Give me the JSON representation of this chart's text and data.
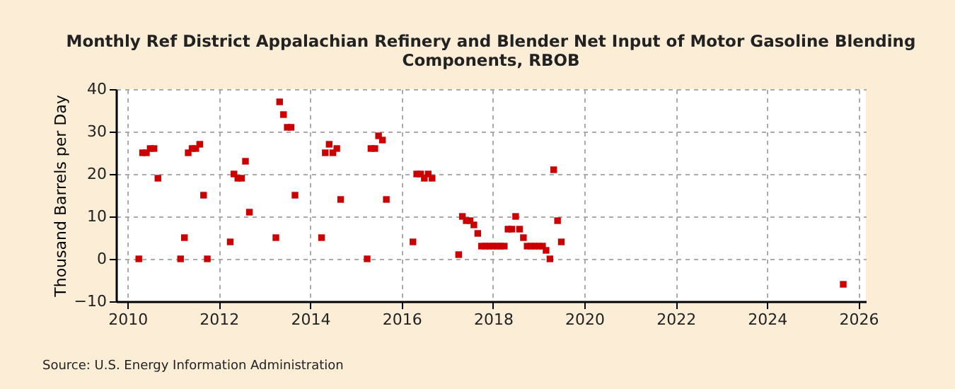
{
  "chart_data": {
    "type": "scatter",
    "title": "Monthly Ref District Appalachian Refinery and Blender Net Input of Motor Gasoline Blending Components, RBOB",
    "ylabel": "Thousand Barrels per Day",
    "annotations": [
      "Source: U.S. Energy Information Administration"
    ],
    "x": [
      "2010-04",
      "2010-05",
      "2010-06",
      "2010-07",
      "2010-08",
      "2010-09",
      "2011-03",
      "2011-04",
      "2011-05",
      "2011-06",
      "2011-07",
      "2011-08",
      "2011-09",
      "2011-10",
      "2012-04",
      "2012-05",
      "2012-06",
      "2012-07",
      "2012-08",
      "2012-09",
      "2013-04",
      "2013-05",
      "2013-06",
      "2013-07",
      "2013-08",
      "2013-09",
      "2014-04",
      "2014-05",
      "2014-06",
      "2014-07",
      "2014-08",
      "2014-09",
      "2015-04",
      "2015-05",
      "2015-06",
      "2015-07",
      "2015-08",
      "2015-09",
      "2016-04",
      "2016-05",
      "2016-06",
      "2016-07",
      "2016-08",
      "2016-09",
      "2017-04",
      "2017-05",
      "2017-06",
      "2017-07",
      "2017-08",
      "2017-09",
      "2017-10",
      "2017-11",
      "2017-12",
      "2018-01",
      "2018-02",
      "2018-03",
      "2018-04",
      "2018-05",
      "2018-06",
      "2018-07",
      "2018-08",
      "2018-09",
      "2018-10",
      "2018-11",
      "2018-12",
      "2019-01",
      "2019-02",
      "2019-03",
      "2019-04",
      "2019-05",
      "2019-06",
      "2019-07",
      "2025-09"
    ],
    "series": [
      {
        "color": "#cc0000",
        "values": [
          0,
          25,
          25,
          26,
          26,
          19,
          0,
          5,
          25,
          26,
          26,
          27,
          15,
          0,
          4,
          20,
          19,
          19,
          23,
          11,
          5,
          37,
          34,
          31,
          31,
          15,
          5,
          25,
          27,
          25,
          26,
          14,
          0,
          26,
          26,
          29,
          28,
          14,
          4,
          20,
          20,
          19,
          20,
          19,
          1,
          10,
          9,
          9,
          8,
          6,
          3,
          3,
          3,
          3,
          3,
          3,
          3,
          7,
          7,
          10,
          7,
          5,
          3,
          3,
          3,
          3,
          3,
          2,
          0,
          21,
          9,
          4,
          -6
        ]
      }
    ],
    "xlim": [
      "2009-10",
      "2026-03"
    ],
    "xticks": [
      "2010",
      "2012",
      "2014",
      "2016",
      "2018",
      "2020",
      "2022",
      "2024",
      "2026"
    ],
    "ylim": [
      -10,
      40
    ],
    "yticks": [
      -10,
      0,
      10,
      20,
      30,
      40
    ],
    "grid": true,
    "marker": "square"
  }
}
